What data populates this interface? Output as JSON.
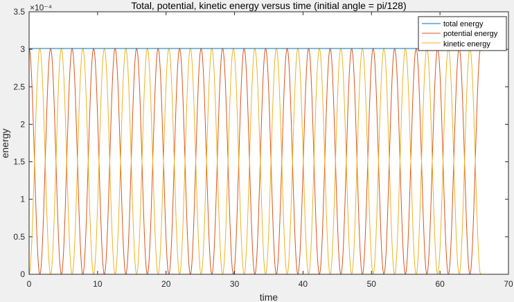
{
  "chart_data": {
    "type": "line",
    "title": "Total, potential, kinetic energy versus time (initial angle = pi/128)",
    "xlabel": "time",
    "ylabel": "energy",
    "xlim": [
      0,
      70
    ],
    "ylim": [
      0,
      0.00035
    ],
    "y_exponent_label": "×10⁻⁴",
    "xticks": [
      0,
      10,
      20,
      30,
      40,
      50,
      60,
      70
    ],
    "xtick_labels": [
      "0",
      "10",
      "20",
      "30",
      "40",
      "50",
      "60",
      "70"
    ],
    "yticks": [
      0,
      5e-05,
      0.0001,
      0.00015,
      0.0002,
      0.00025,
      0.0003,
      0.00035
    ],
    "ytick_labels": [
      "0",
      "0.5",
      "1",
      "1.5",
      "2",
      "2.5",
      "3",
      "3.5"
    ],
    "grid": false,
    "legend_location": "top-right",
    "x_range": [
      0,
      66
    ],
    "energy_max": 0.000301,
    "oscillation_period": 3.14,
    "series": [
      {
        "name": "total energy",
        "color": "#0072bd",
        "kind": "constant",
        "value": 0.000301
      },
      {
        "name": "potential energy",
        "color": "#d95319",
        "kind": "cos2"
      },
      {
        "name": "kinetic energy",
        "color": "#edb120",
        "kind": "sin2"
      }
    ]
  }
}
